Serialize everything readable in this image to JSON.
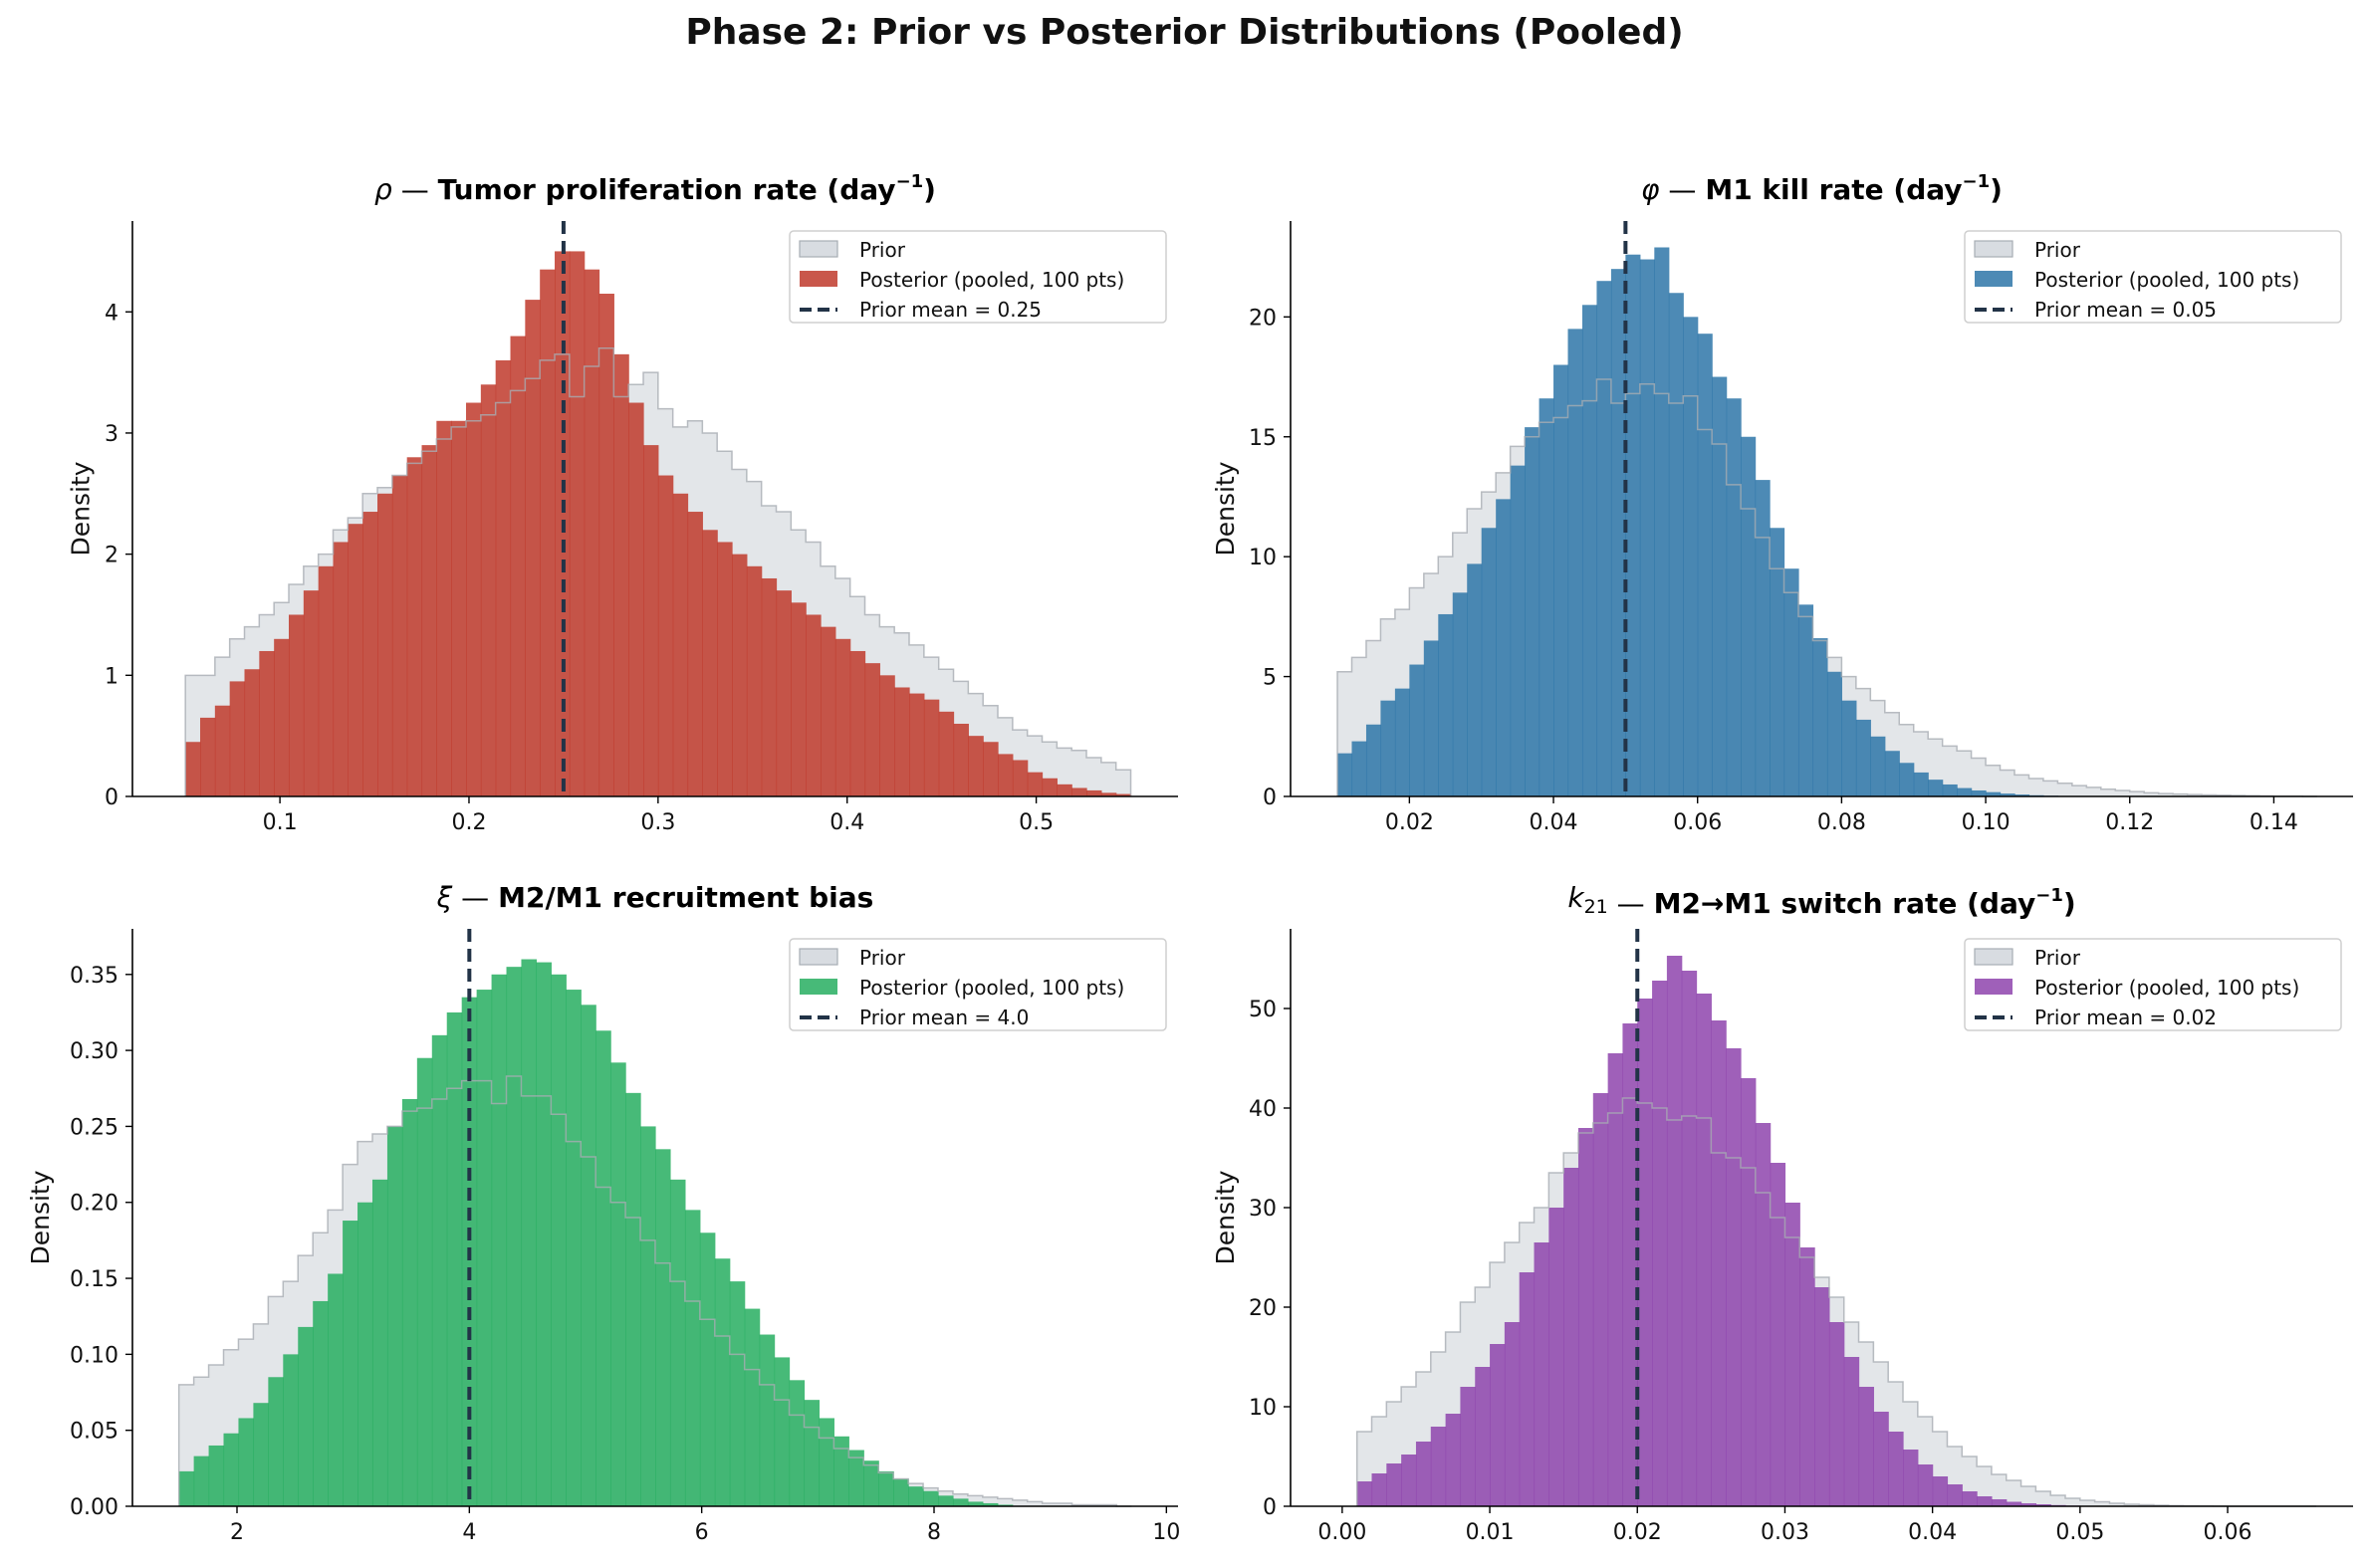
{
  "suptitle": "Phase 2: Prior vs Posterior Distributions (Pooled)",
  "chart_data": [
    {
      "type": "bar",
      "title": "ρ — Tumor proliferation rate (day⁻¹)",
      "title_symbol": "ρ",
      "title_text": "Tumor proliferation rate (day",
      "title_sup": "−1",
      "title_end": ")",
      "xlabel": "",
      "ylabel": "Density",
      "xlim": [
        0.022,
        0.575
      ],
      "ylim": [
        0,
        4.75
      ],
      "xticks": [
        0.1,
        0.2,
        0.3,
        0.4,
        0.5
      ],
      "xtick_labels": [
        "0.1",
        "0.2",
        "0.3",
        "0.4",
        "0.5"
      ],
      "yticks": [
        0,
        1,
        2,
        3,
        4
      ],
      "ytick_labels": [
        "0",
        "1",
        "2",
        "3",
        "4"
      ],
      "bin_range": [
        0.05,
        0.55
      ],
      "prior_mean": 0.25,
      "posterior_color": "#c0392b",
      "legend": [
        "Prior",
        "Posterior (pooled, 100 pts)",
        "Prior mean = 0.25"
      ],
      "legend_position": "upper right",
      "series": [
        {
          "name": "Prior",
          "values": [
            1.0,
            1.0,
            1.15,
            1.3,
            1.4,
            1.5,
            1.6,
            1.75,
            1.9,
            2.0,
            2.2,
            2.3,
            2.5,
            2.55,
            2.65,
            2.75,
            2.85,
            2.95,
            3.05,
            3.1,
            3.15,
            3.25,
            3.35,
            3.45,
            3.6,
            3.65,
            3.3,
            3.55,
            3.7,
            3.3,
            3.4,
            3.5,
            3.2,
            3.05,
            3.1,
            3.0,
            2.85,
            2.7,
            2.6,
            2.4,
            2.35,
            2.2,
            2.1,
            1.9,
            1.8,
            1.65,
            1.5,
            1.4,
            1.35,
            1.25,
            1.15,
            1.05,
            0.95,
            0.85,
            0.75,
            0.65,
            0.55,
            0.5,
            0.45,
            0.4,
            0.38,
            0.32,
            0.28,
            0.22
          ]
        },
        {
          "name": "Posterior (pooled, 100 pts)",
          "values": [
            0.45,
            0.65,
            0.75,
            0.95,
            1.05,
            1.2,
            1.3,
            1.5,
            1.7,
            1.9,
            2.1,
            2.25,
            2.35,
            2.5,
            2.65,
            2.8,
            2.9,
            3.1,
            3.1,
            3.25,
            3.4,
            3.6,
            3.8,
            4.1,
            4.35,
            4.5,
            4.5,
            4.35,
            4.15,
            3.65,
            3.25,
            2.9,
            2.65,
            2.5,
            2.35,
            2.2,
            2.1,
            2.0,
            1.9,
            1.8,
            1.7,
            1.6,
            1.5,
            1.4,
            1.3,
            1.2,
            1.1,
            1.0,
            0.9,
            0.85,
            0.8,
            0.7,
            0.6,
            0.5,
            0.45,
            0.35,
            0.3,
            0.2,
            0.15,
            0.1,
            0.07,
            0.05,
            0.03,
            0.02
          ]
        }
      ]
    },
    {
      "type": "bar",
      "title": "φ — M1 kill rate (day⁻¹)",
      "title_symbol": "φ",
      "title_text": "M1 kill rate (day",
      "title_sup": "−1",
      "title_end": ")",
      "xlabel": "",
      "ylabel": "Density",
      "xlim": [
        0.0035,
        0.151
      ],
      "ylim": [
        0,
        24
      ],
      "xticks": [
        0.02,
        0.04,
        0.06,
        0.08,
        0.1,
        0.12,
        0.14
      ],
      "xtick_labels": [
        "0.02",
        "0.04",
        "0.06",
        "0.08",
        "0.10",
        "0.12",
        "0.14"
      ],
      "yticks": [
        0,
        5,
        10,
        15,
        20
      ],
      "ytick_labels": [
        "0",
        "5",
        "10",
        "15",
        "20"
      ],
      "bin_range": [
        0.01,
        0.146
      ],
      "prior_mean": 0.05,
      "posterior_color": "#2e75a8",
      "legend": [
        "Prior",
        "Posterior (pooled, 100 pts)",
        "Prior mean = 0.05"
      ],
      "legend_position": "upper right",
      "series": [
        {
          "name": "Prior",
          "values": [
            5.2,
            5.8,
            6.5,
            7.4,
            7.8,
            8.7,
            9.3,
            10.0,
            11.0,
            12.0,
            12.7,
            13.5,
            14.6,
            15.0,
            15.6,
            15.8,
            16.3,
            16.5,
            17.4,
            16.4,
            16.8,
            17.2,
            16.8,
            16.4,
            16.7,
            15.3,
            14.7,
            13.0,
            12.0,
            10.8,
            9.5,
            8.5,
            7.5,
            6.5,
            5.8,
            5.0,
            4.5,
            4.0,
            3.5,
            3.0,
            2.7,
            2.4,
            2.1,
            1.9,
            1.6,
            1.3,
            1.1,
            0.9,
            0.75,
            0.65,
            0.55,
            0.45,
            0.38,
            0.3,
            0.25,
            0.2,
            0.15,
            0.12,
            0.1,
            0.08,
            0.06,
            0.05,
            0.04,
            0.03,
            0.02,
            0.01,
            0.01,
            0.0
          ]
        },
        {
          "name": "Posterior (pooled, 100 pts)",
          "values": [
            1.8,
            2.3,
            3.0,
            4.0,
            4.5,
            5.5,
            6.5,
            7.6,
            8.5,
            9.7,
            11.2,
            12.4,
            13.8,
            15.4,
            16.6,
            18.0,
            19.5,
            20.5,
            21.5,
            22.0,
            22.6,
            22.4,
            22.9,
            21.0,
            20.0,
            19.3,
            17.5,
            16.6,
            15.0,
            13.2,
            11.2,
            9.5,
            8.0,
            6.6,
            5.2,
            4.0,
            3.2,
            2.5,
            1.9,
            1.4,
            1.0,
            0.7,
            0.5,
            0.35,
            0.25,
            0.18,
            0.12,
            0.08,
            0.05,
            0.03,
            0.02,
            0.01,
            0.0,
            0.0,
            0.0,
            0.0,
            0.0,
            0.0,
            0.0,
            0.0,
            0.0,
            0.0,
            0.0,
            0.0,
            0.0,
            0.0,
            0.0,
            0.0
          ]
        }
      ]
    },
    {
      "type": "bar",
      "title": "ξ — M2/M1 recruitment bias",
      "title_symbol": "ξ",
      "title_text": "M2/M1 recruitment bias",
      "title_sup": "",
      "title_end": "",
      "xlabel": "",
      "ylabel": "Density",
      "xlim": [
        1.1,
        10.1
      ],
      "ylim": [
        0,
        0.38
      ],
      "xticks": [
        2,
        4,
        6,
        8,
        10
      ],
      "xtick_labels": [
        "2",
        "4",
        "6",
        "8",
        "10"
      ],
      "yticks": [
        0,
        0.05,
        0.1,
        0.15,
        0.2,
        0.25,
        0.3,
        0.35
      ],
      "ytick_labels": [
        "0.00",
        "0.05",
        "0.10",
        "0.15",
        "0.20",
        "0.25",
        "0.30",
        "0.35"
      ],
      "bin_range": [
        1.5,
        9.7
      ],
      "prior_mean": 4.0,
      "posterior_color": "#27ae60",
      "legend": [
        "Prior",
        "Posterior (pooled, 100 pts)",
        "Prior mean = 4.0"
      ],
      "legend_position": "upper right",
      "series": [
        {
          "name": "Prior",
          "values": [
            0.08,
            0.085,
            0.093,
            0.103,
            0.11,
            0.12,
            0.138,
            0.148,
            0.165,
            0.18,
            0.195,
            0.225,
            0.24,
            0.245,
            0.25,
            0.26,
            0.262,
            0.268,
            0.275,
            0.28,
            0.28,
            0.265,
            0.283,
            0.27,
            0.27,
            0.258,
            0.24,
            0.23,
            0.21,
            0.2,
            0.19,
            0.175,
            0.16,
            0.148,
            0.135,
            0.123,
            0.112,
            0.1,
            0.09,
            0.08,
            0.07,
            0.06,
            0.052,
            0.045,
            0.038,
            0.032,
            0.027,
            0.022,
            0.018,
            0.015,
            0.012,
            0.01,
            0.008,
            0.007,
            0.006,
            0.005,
            0.004,
            0.003,
            0.002,
            0.002,
            0.001,
            0.001,
            0.001,
            0.0
          ]
        },
        {
          "name": "Posterior (pooled, 100 pts)",
          "values": [
            0.023,
            0.033,
            0.04,
            0.048,
            0.058,
            0.068,
            0.085,
            0.1,
            0.118,
            0.135,
            0.153,
            0.188,
            0.2,
            0.215,
            0.25,
            0.268,
            0.295,
            0.31,
            0.325,
            0.335,
            0.34,
            0.35,
            0.355,
            0.36,
            0.358,
            0.35,
            0.34,
            0.33,
            0.313,
            0.292,
            0.272,
            0.25,
            0.235,
            0.215,
            0.195,
            0.18,
            0.163,
            0.148,
            0.13,
            0.113,
            0.098,
            0.083,
            0.07,
            0.058,
            0.046,
            0.037,
            0.03,
            0.023,
            0.018,
            0.013,
            0.01,
            0.007,
            0.005,
            0.003,
            0.002,
            0.001,
            0.0,
            0.0,
            0.0,
            0.0,
            0.0,
            0.0,
            0.0,
            0.0
          ]
        }
      ]
    },
    {
      "type": "bar",
      "title": "k₂₁ — M2→M1 switch rate (day⁻¹)",
      "title_symbol": "k",
      "title_symbol_sub": "21",
      "title_text": "M2→M1 switch rate (day",
      "title_sup": "−1",
      "title_end": ")",
      "xlabel": "",
      "ylabel": "Density",
      "xlim": [
        -0.0035,
        0.0685
      ],
      "ylim": [
        0,
        58
      ],
      "xticks": [
        0.0,
        0.01,
        0.02,
        0.03,
        0.04,
        0.05,
        0.06
      ],
      "xtick_labels": [
        "0.00",
        "0.01",
        "0.02",
        "0.03",
        "0.04",
        "0.05",
        "0.06"
      ],
      "yticks": [
        0,
        10,
        20,
        30,
        40,
        50
      ],
      "ytick_labels": [
        "0",
        "10",
        "20",
        "30",
        "40",
        "50"
      ],
      "bin_range": [
        0.001,
        0.066
      ],
      "prior_mean": 0.02,
      "posterior_color": "#8e44ad",
      "legend": [
        "Prior",
        "Posterior (pooled, 100 pts)",
        "Prior mean = 0.02"
      ],
      "legend_position": "upper right",
      "series": [
        {
          "name": "Prior",
          "values": [
            7.5,
            9.0,
            10.5,
            12.0,
            13.5,
            15.5,
            17.5,
            20.5,
            22.0,
            24.5,
            26.5,
            28.5,
            30.0,
            33.5,
            35.5,
            37.5,
            38.5,
            39.5,
            41.0,
            40.5,
            40.0,
            38.8,
            39.2,
            39.0,
            35.5,
            35.0,
            34.0,
            31.5,
            29.0,
            27.0,
            25.0,
            23.0,
            21.0,
            18.5,
            16.5,
            14.5,
            12.5,
            10.5,
            9.0,
            7.5,
            6.0,
            5.0,
            4.0,
            3.2,
            2.6,
            2.0,
            1.5,
            1.1,
            0.8,
            0.6,
            0.45,
            0.3,
            0.2,
            0.15,
            0.1,
            0.06,
            0.04,
            0.02,
            0.01,
            0.0,
            0.0,
            0.0,
            0.0,
            0.0,
            0.0
          ]
        },
        {
          "name": "Posterior (pooled, 100 pts)",
          "values": [
            2.5,
            3.3,
            4.3,
            5.2,
            6.5,
            8.0,
            9.3,
            12.0,
            14.0,
            16.3,
            18.5,
            23.5,
            26.5,
            30.0,
            34.0,
            38.0,
            41.5,
            45.5,
            48.5,
            51.0,
            52.8,
            55.3,
            53.8,
            51.5,
            48.8,
            46.0,
            43.0,
            38.5,
            34.5,
            30.5,
            26.0,
            22.0,
            18.5,
            15.0,
            12.0,
            9.5,
            7.5,
            5.7,
            4.2,
            3.0,
            2.2,
            1.5,
            1.0,
            0.7,
            0.45,
            0.3,
            0.2,
            0.12,
            0.07,
            0.04,
            0.02,
            0.01,
            0.0,
            0.0,
            0.0,
            0.0,
            0.0,
            0.0,
            0.0,
            0.0,
            0.0,
            0.0,
            0.0,
            0.0,
            0.0
          ]
        }
      ]
    }
  ],
  "colors": {
    "prior_fill": "#d8dce1",
    "prior_edge": "#a7adb3",
    "mean_line": "#223347"
  }
}
